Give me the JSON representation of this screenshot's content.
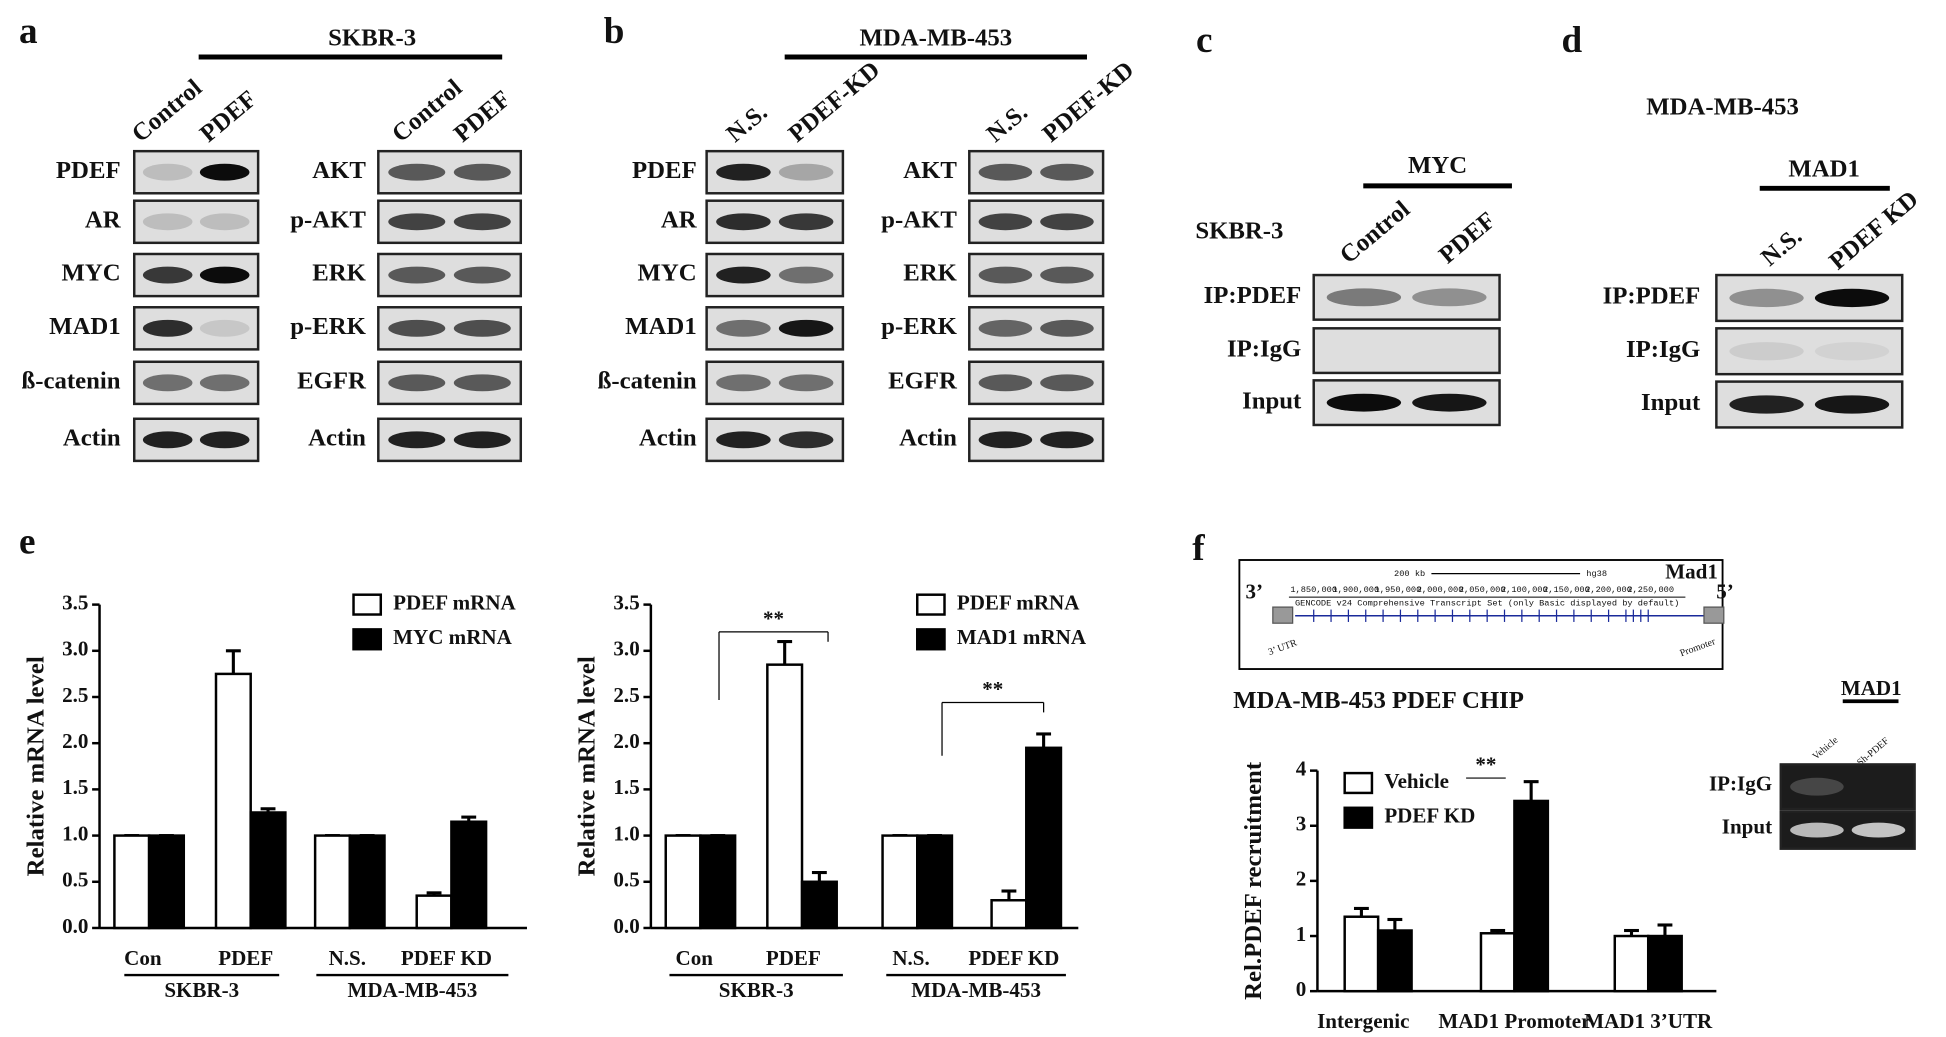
{
  "panels": [
    {
      "label": "a",
      "cell_line": "SKBR-3",
      "lanes": [
        "Control",
        "PDEF",
        "Control",
        "PDEF"
      ],
      "rows_left": [
        "PDEF",
        "AR",
        "MYC",
        "MAD1",
        "ß-catenin",
        "Actin"
      ],
      "rows_right": [
        "AKT",
        "p-AKT",
        "ERK",
        "p-ERK",
        "EGFR",
        "Actin"
      ]
    },
    {
      "label": "b",
      "cell_line": "MDA-MB-453",
      "lanes": [
        "N.S.",
        "PDEF-KD",
        "N.S.",
        "PDEF-KD"
      ],
      "rows_left": [
        "PDEF",
        "AR",
        "MYC",
        "MAD1",
        "ß-catenin",
        "Actin"
      ],
      "rows_right": [
        "AKT",
        "p-AKT",
        "ERK",
        "p-ERK",
        "EGFR",
        "Actin"
      ]
    },
    {
      "label": "c",
      "cell_line": "SKBR-3",
      "target": "MYC",
      "lanes": [
        "Control",
        "PDEF"
      ],
      "rows": [
        "IP:PDEF",
        "IP:IgG",
        "Input"
      ]
    },
    {
      "label": "d",
      "cell_line": "MDA-MB-453",
      "target": "MAD1",
      "lanes": [
        "N.S.",
        "PDEF KD"
      ],
      "rows": [
        "IP:PDEF",
        "IP:IgG",
        "Input"
      ]
    },
    {
      "label": "e"
    },
    {
      "label": "f",
      "browser": {
        "scale": "200 kb",
        "assembly": "hg38",
        "gene": "Mad1",
        "end3": "3’",
        "end5": "5’",
        "utr": "3’ UTR",
        "promoter": "Promoter",
        "coords": [
          "1,850,000",
          "1,900,000",
          "1,950,000",
          "2,000,000",
          "2,050,000",
          "2,100,000",
          "2,150,000",
          "2,200,000",
          "2,250,000"
        ],
        "track": "GENCODE v24 Comprehensive Transcript Set (only Basic displayed by default)"
      },
      "gel": {
        "target": "MAD1",
        "lanes": [
          "Vehicle",
          "Sh-PDEF"
        ],
        "rows": [
          "IP:IgG",
          "Input"
        ]
      }
    }
  ],
  "chart_data": [
    {
      "type": "bar",
      "ylabel": "Relative mRNA level",
      "categories": [
        "Con",
        "PDEF",
        "N.S.",
        "PDEF KD"
      ],
      "groups": [
        "SKBR-3",
        "MDA-MB-453"
      ],
      "ylim": [
        0,
        3.5
      ],
      "yticks": [
        {
          "value": 0,
          "label": "0.0"
        },
        0.5,
        {
          "value": 1,
          "label": "1.0"
        },
        1.5,
        {
          "value": 2,
          "label": "2.0"
        },
        2.5,
        {
          "value": 3,
          "label": "3.0"
        },
        3.5
      ],
      "series": [
        {
          "name": "PDEF mRNA",
          "color": "#ffffff",
          "values": [
            1,
            2.75,
            1,
            0.35
          ],
          "errors": [
            0,
            0.25,
            0,
            0.03
          ]
        },
        {
          "name": "MYC mRNA",
          "color": "#000000",
          "values": [
            1,
            1.25,
            1,
            1.15
          ],
          "errors": [
            0,
            0.04,
            0,
            0.05
          ]
        }
      ]
    },
    {
      "type": "bar",
      "ylabel": "Relative mRNA level",
      "categories": [
        "Con",
        "PDEF",
        "N.S.",
        "PDEF KD"
      ],
      "groups": [
        "SKBR-3",
        "MDA-MB-453"
      ],
      "ylim": [
        0,
        3.5
      ],
      "yticks": [
        {
          "value": 0,
          "label": "0.0"
        },
        0.5,
        {
          "value": 1,
          "label": "1.0"
        },
        1.5,
        {
          "value": 2,
          "label": "2.0"
        },
        2.5,
        {
          "value": 3,
          "label": "3.0"
        },
        3.5
      ],
      "annotations": [
        "**",
        "**"
      ],
      "series": [
        {
          "name": "PDEF mRNA",
          "color": "#ffffff",
          "values": [
            1,
            2.85,
            1,
            0.3
          ],
          "errors": [
            0,
            0.25,
            0,
            0.1
          ]
        },
        {
          "name": "MAD1 mRNA",
          "color": "#000000",
          "values": [
            1,
            0.5,
            1,
            1.95
          ],
          "errors": [
            0,
            0.1,
            0,
            0.15
          ]
        }
      ]
    },
    {
      "type": "bar",
      "title": "MDA-MB-453   PDEF CHIP",
      "ylabel": "Rel.PDEF recruitment",
      "categories": [
        "Intergenic",
        "MAD1 Promoter",
        "MAD1 3’UTR"
      ],
      "ylim": [
        0,
        4
      ],
      "yticks": [
        0,
        1,
        2,
        3,
        4
      ],
      "annotations": [
        "**"
      ],
      "series": [
        {
          "name": "Vehicle",
          "color": "#ffffff",
          "values": [
            1.35,
            1.05,
            1.0
          ],
          "errors": [
            0.15,
            0.05,
            0.1
          ]
        },
        {
          "name": "PDEF KD",
          "color": "#000000",
          "values": [
            1.1,
            3.45,
            1.0
          ],
          "errors": [
            0.2,
            0.35,
            0.2
          ]
        }
      ]
    }
  ]
}
